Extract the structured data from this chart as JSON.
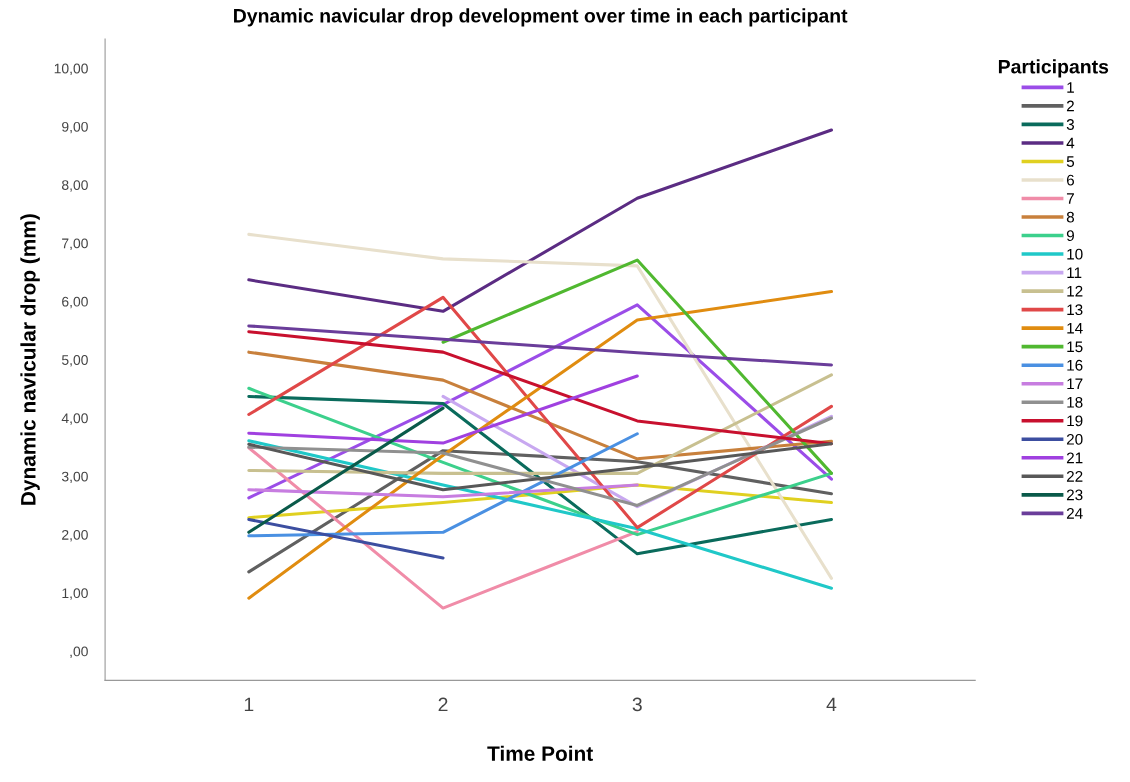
{
  "chart_data": {
    "type": "line",
    "title": "Dynamic navicular drop development over time in each participant",
    "xlabel": "Time Point",
    "ylabel": "Dynamic navicular drop (mm)",
    "legend_title": "Participants",
    "legend": "right",
    "grid": false,
    "marker": "none",
    "line_style": "solid",
    "x": [
      1,
      2,
      3,
      4
    ],
    "xlim": [
      0.26,
      4.74
    ],
    "xticks": [
      1,
      2,
      3,
      4
    ],
    "ylim": [
      -0.5,
      10.5
    ],
    "yticks": [
      {
        "value": 0,
        "label": ",00"
      },
      {
        "value": 1,
        "label": "1,00"
      },
      {
        "value": 2,
        "label": "2,00"
      },
      {
        "value": 3,
        "label": "3,00"
      },
      {
        "value": 4,
        "label": "4,00"
      },
      {
        "value": 5,
        "label": "5,00"
      },
      {
        "value": 6,
        "label": "6,00"
      },
      {
        "value": 7,
        "label": "7,00"
      },
      {
        "value": 8,
        "label": "8,00"
      },
      {
        "value": 9,
        "label": "9,00"
      },
      {
        "value": 10,
        "label": "10,00"
      }
    ],
    "series": [
      {
        "name": "1",
        "color": "#9b4de8",
        "values": [
          2.63,
          4.23,
          5.94,
          2.95
        ]
      },
      {
        "name": "2",
        "color": "#606060",
        "values": [
          1.36,
          3.44,
          3.25,
          2.7
        ]
      },
      {
        "name": "3",
        "color": "#0a6b5c",
        "values": [
          4.37,
          4.25,
          1.67,
          2.26
        ]
      },
      {
        "name": "4",
        "color": "#5b2c83",
        "values": [
          6.37,
          5.83,
          7.77,
          8.94
        ]
      },
      {
        "name": "5",
        "color": "#e0d020",
        "values": [
          2.29,
          2.55,
          2.85,
          2.55
        ]
      },
      {
        "name": "6",
        "color": "#e8e0cc",
        "values": [
          7.15,
          6.73,
          6.61,
          1.25
        ]
      },
      {
        "name": "7",
        "color": "#f08ca8",
        "values": [
          3.49,
          0.74,
          2.05,
          null
        ]
      },
      {
        "name": "8",
        "color": "#c8803c",
        "values": [
          5.13,
          4.65,
          3.3,
          3.6
        ]
      },
      {
        "name": "9",
        "color": "#3cd08c",
        "values": [
          4.51,
          3.24,
          2.0,
          3.05
        ]
      },
      {
        "name": "10",
        "color": "#20c8c8",
        "values": [
          3.61,
          2.85,
          2.1,
          1.08
        ]
      },
      {
        "name": "11",
        "color": "#c8a8f0",
        "values": [
          null,
          4.37,
          2.48,
          4.03
        ]
      },
      {
        "name": "12",
        "color": "#c8c090",
        "values": [
          3.1,
          3.05,
          3.05,
          4.74
        ]
      },
      {
        "name": "13",
        "color": "#e04848",
        "values": [
          4.06,
          6.07,
          2.12,
          4.2
        ]
      },
      {
        "name": "14",
        "color": "#e08c10",
        "values": [
          0.91,
          3.36,
          5.68,
          6.17
        ]
      },
      {
        "name": "15",
        "color": "#50b830",
        "values": [
          null,
          5.3,
          6.71,
          3.05
        ]
      },
      {
        "name": "16",
        "color": "#4a90e2",
        "values": [
          1.98,
          2.04,
          3.73,
          null
        ]
      },
      {
        "name": "17",
        "color": "#c77de0",
        "values": [
          2.77,
          2.65,
          2.85,
          null
        ]
      },
      {
        "name": "18",
        "color": "#909090",
        "values": [
          3.5,
          3.4,
          2.5,
          4.0
        ]
      },
      {
        "name": "19",
        "color": "#c8102e",
        "values": [
          5.48,
          5.13,
          3.95,
          3.56
        ]
      },
      {
        "name": "20",
        "color": "#3c4ea0",
        "values": [
          2.26,
          1.6,
          null,
          null
        ]
      },
      {
        "name": "21",
        "color": "#a040e0",
        "values": [
          3.74,
          3.57,
          4.72,
          null
        ]
      },
      {
        "name": "22",
        "color": "#585858",
        "values": [
          3.55,
          2.77,
          3.15,
          3.56
        ]
      },
      {
        "name": "23",
        "color": "#0a5a4a",
        "values": [
          2.04,
          4.17,
          null,
          null
        ]
      },
      {
        "name": "24",
        "color": "#6a3d9a",
        "values": [
          5.58,
          5.35,
          5.12,
          4.91
        ]
      }
    ]
  }
}
